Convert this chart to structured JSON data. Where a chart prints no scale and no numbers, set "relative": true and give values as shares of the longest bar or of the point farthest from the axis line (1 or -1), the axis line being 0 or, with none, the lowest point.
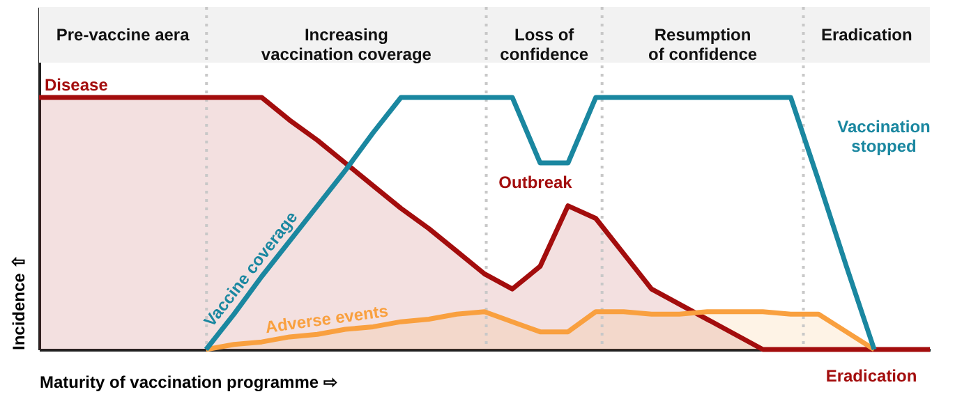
{
  "chart_data": {
    "type": "line",
    "relative": true,
    "tick_labels": false,
    "grid": false,
    "marker": "none",
    "line_style": "solid",
    "xlabel": "Maturity of vaccination programme ⇨",
    "ylabel": "Incidence ⇧",
    "categories": [
      null,
      null,
      null,
      null,
      null,
      null,
      null,
      null,
      null,
      null,
      null,
      null,
      null,
      null,
      null,
      null,
      null,
      null,
      null,
      null,
      null,
      null,
      null,
      null,
      null,
      null,
      null,
      null,
      null,
      null,
      null,
      null,
      null
    ],
    "series": [
      {
        "name": "Disease",
        "type": "area",
        "color": "#a30d0d",
        "values": [
          1,
          1,
          1,
          1,
          1,
          1,
          1,
          1,
          1,
          0.91,
          0.83,
          0.74,
          0.65,
          0.56,
          0.48,
          0.39,
          0.3,
          0.24,
          0.33,
          0.57,
          0.52,
          0.38,
          0.24,
          0.18,
          0.12,
          0.06,
          0,
          0,
          0,
          0,
          0,
          0,
          0
        ]
      },
      {
        "name": "Adverse events",
        "type": "area",
        "color": "#f9a03f",
        "values": [
          null,
          null,
          null,
          null,
          null,
          null,
          0,
          0.02,
          0.03,
          0.05,
          0.06,
          0.08,
          0.09,
          0.11,
          0.12,
          0.14,
          0.15,
          0.11,
          0.07,
          0.07,
          0.15,
          0.15,
          0.14,
          0.14,
          0.15,
          0.15,
          0.15,
          0.14,
          0.14,
          0.07,
          0,
          null,
          null
        ]
      },
      {
        "name": "Vaccine coverage",
        "color": "#1a87a0",
        "values": [
          null,
          null,
          null,
          null,
          null,
          null,
          0,
          0.14,
          0.29,
          0.43,
          0.57,
          0.71,
          0.86,
          1,
          1,
          1,
          1,
          1,
          0.74,
          0.74,
          1,
          1,
          1,
          1,
          1,
          1,
          1,
          1,
          0.67,
          0.33,
          0,
          null,
          null
        ]
      }
    ],
    "annotations": [
      "Pre-vaccine aera",
      "Increasing\nvaccination coverage",
      "Loss of\nconfidence",
      "Resumption\nof confidence",
      "Eradication",
      "Outbreak",
      "Vaccination\nstopped",
      "Eradication"
    ]
  }
}
